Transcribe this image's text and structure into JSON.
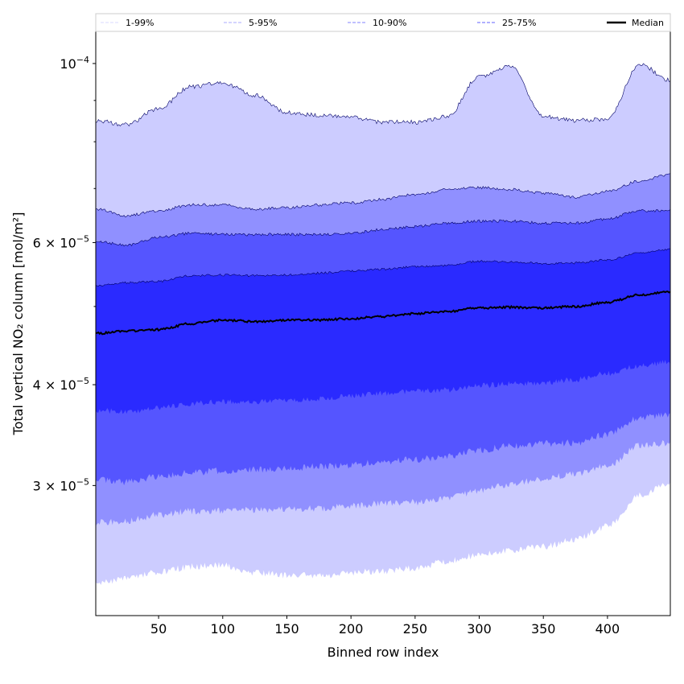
{
  "chart_data": {
    "type": "area",
    "title": "",
    "xlabel": "Binned row index",
    "ylabel": "Total vertical NO₂ column [mol/m²]",
    "y_scale": "log",
    "value_scale": 1e-05,
    "xlim": [
      1,
      449
    ],
    "ylim": [
      2.07e-05,
      0.0001096
    ],
    "x_ticks": [
      50,
      100,
      150,
      200,
      250,
      300,
      350,
      400
    ],
    "y_ticks": [
      {
        "value": 0.0001,
        "mantissa": "",
        "base": "10",
        "exp": "−4"
      },
      {
        "value": 6e-05,
        "mantissa": "6 × ",
        "base": "10",
        "exp": "−5"
      },
      {
        "value": 4e-05,
        "mantissa": "4 × ",
        "base": "10",
        "exp": "−5"
      },
      {
        "value": 3e-05,
        "mantissa": "3 × ",
        "base": "10",
        "exp": "−5"
      }
    ],
    "y_minor_ticks": [
      9e-05,
      8e-05,
      7e-05,
      5e-05
    ],
    "legend_placement": "top (above plot)",
    "x": [
      1,
      25,
      50,
      75,
      100,
      125,
      150,
      175,
      200,
      225,
      250,
      275,
      300,
      325,
      350,
      375,
      400,
      425,
      449
    ],
    "series": [
      {
        "name": "p99",
        "values": [
          8.5,
          8.4,
          8.79,
          9.36,
          9.46,
          9.14,
          8.69,
          8.63,
          8.57,
          8.46,
          8.46,
          8.59,
          9.64,
          9.93,
          8.59,
          8.5,
          8.54,
          9.98,
          9.53
        ]
      },
      {
        "name": "p95",
        "values": [
          6.6,
          6.48,
          6.57,
          6.68,
          6.68,
          6.6,
          6.63,
          6.68,
          6.72,
          6.79,
          6.88,
          6.98,
          7.02,
          6.98,
          6.91,
          6.83,
          6.94,
          7.15,
          7.29
        ]
      },
      {
        "name": "p90",
        "values": [
          6.02,
          5.96,
          6.09,
          6.16,
          6.14,
          6.14,
          6.14,
          6.14,
          6.16,
          6.23,
          6.28,
          6.34,
          6.38,
          6.38,
          6.34,
          6.34,
          6.42,
          6.57,
          6.57
        ]
      },
      {
        "name": "p75",
        "values": [
          5.31,
          5.35,
          5.37,
          5.46,
          5.47,
          5.46,
          5.47,
          5.5,
          5.53,
          5.56,
          5.6,
          5.62,
          5.69,
          5.68,
          5.65,
          5.66,
          5.71,
          5.82,
          5.89
        ]
      },
      {
        "name": "Median",
        "values": [
          4.63,
          4.66,
          4.68,
          4.76,
          4.81,
          4.79,
          4.81,
          4.81,
          4.83,
          4.86,
          4.9,
          4.93,
          4.98,
          4.99,
          4.98,
          5.0,
          5.06,
          5.17,
          5.21
        ]
      },
      {
        "name": "p25",
        "values": [
          3.72,
          3.7,
          3.74,
          3.79,
          3.81,
          3.81,
          3.83,
          3.84,
          3.88,
          3.9,
          3.93,
          3.94,
          3.99,
          4.01,
          4.02,
          4.06,
          4.13,
          4.22,
          4.27
        ]
      },
      {
        "name": "p10",
        "values": [
          3.05,
          3.03,
          3.08,
          3.11,
          3.13,
          3.14,
          3.15,
          3.17,
          3.18,
          3.21,
          3.23,
          3.26,
          3.32,
          3.36,
          3.38,
          3.39,
          3.47,
          3.64,
          3.68
        ]
      },
      {
        "name": "p5",
        "values": [
          2.7,
          2.71,
          2.76,
          2.79,
          2.79,
          2.8,
          2.81,
          2.81,
          2.83,
          2.85,
          2.86,
          2.89,
          2.96,
          3.01,
          3.06,
          3.1,
          3.17,
          3.36,
          3.39
        ]
      },
      {
        "name": "p1",
        "values": [
          2.27,
          2.3,
          2.34,
          2.38,
          2.39,
          2.34,
          2.32,
          2.32,
          2.34,
          2.35,
          2.37,
          2.42,
          2.46,
          2.49,
          2.52,
          2.57,
          2.67,
          2.92,
          3.03
        ]
      }
    ],
    "bands": [
      {
        "label": "1-99%",
        "upper": "p99",
        "lower": "p1",
        "color": "#ccccff",
        "line": "#d8d8ff"
      },
      {
        "label": "5-95%",
        "upper": "p95",
        "lower": "p5",
        "color": "#9090ff",
        "line": "#a8a8ff"
      },
      {
        "label": "10-90%",
        "upper": "p90",
        "lower": "p10",
        "color": "#5555ff",
        "line": "#8080ff"
      },
      {
        "label": "25-75%",
        "upper": "p75",
        "lower": "p25",
        "color": "#2a2aff",
        "line": "#6060ff"
      }
    ],
    "median": {
      "label": "Median",
      "color": "#000000"
    },
    "edge_color": "#000066"
  }
}
